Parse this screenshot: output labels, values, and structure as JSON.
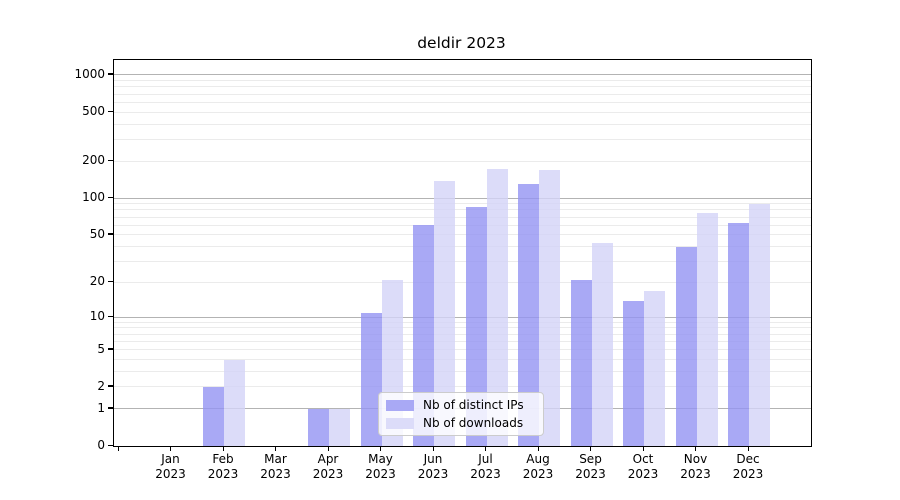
{
  "title": "deldir 2023",
  "legend": {
    "items": [
      {
        "label": "Nb of distinct IPs",
        "color": "#a9a9f5"
      },
      {
        "label": "Nb of downloads",
        "color": "#dcdcf9"
      }
    ],
    "position": "lower center"
  },
  "chart_data": {
    "type": "bar",
    "title": "deldir 2023",
    "categories": [
      "Jan",
      "Feb",
      "Mar",
      "Apr",
      "May",
      "Jun",
      "Jul",
      "Aug",
      "Sep",
      "Oct",
      "Nov",
      "Dec"
    ],
    "category_year_label": "2023",
    "series": [
      {
        "name": "Nb of distinct IPs",
        "color_rgba": "rgba(148,148,243,0.8)",
        "color": "#a9a9f5",
        "values": [
          0,
          2,
          0,
          1,
          11,
          60,
          84,
          130,
          21,
          14,
          40,
          62
        ]
      },
      {
        "name": "Nb of downloads",
        "color_rgba": "rgba(211,211,247,0.8)",
        "color": "#dcdcf9",
        "values": [
          0,
          4,
          0,
          1,
          21,
          138,
          172,
          170,
          43,
          17,
          75,
          90
        ]
      }
    ],
    "yaxis": {
      "scale": "log10(value+1)",
      "tick_values": [
        0,
        1,
        2,
        5,
        10,
        20,
        50,
        100,
        200,
        500,
        1000
      ],
      "major_gridline_values": [
        1,
        10,
        100,
        1000
      ],
      "range": [
        0,
        1000
      ],
      "grid": true
    },
    "xaxis": {
      "ticks_at": "bar-pair centers plus one leading boundary tick"
    },
    "colors": {
      "major_grid": "#b3b3b3",
      "minor_grid": "#ebebeb",
      "spine": "#000000",
      "background": "#ffffff"
    },
    "legend_position": "lower center"
  }
}
